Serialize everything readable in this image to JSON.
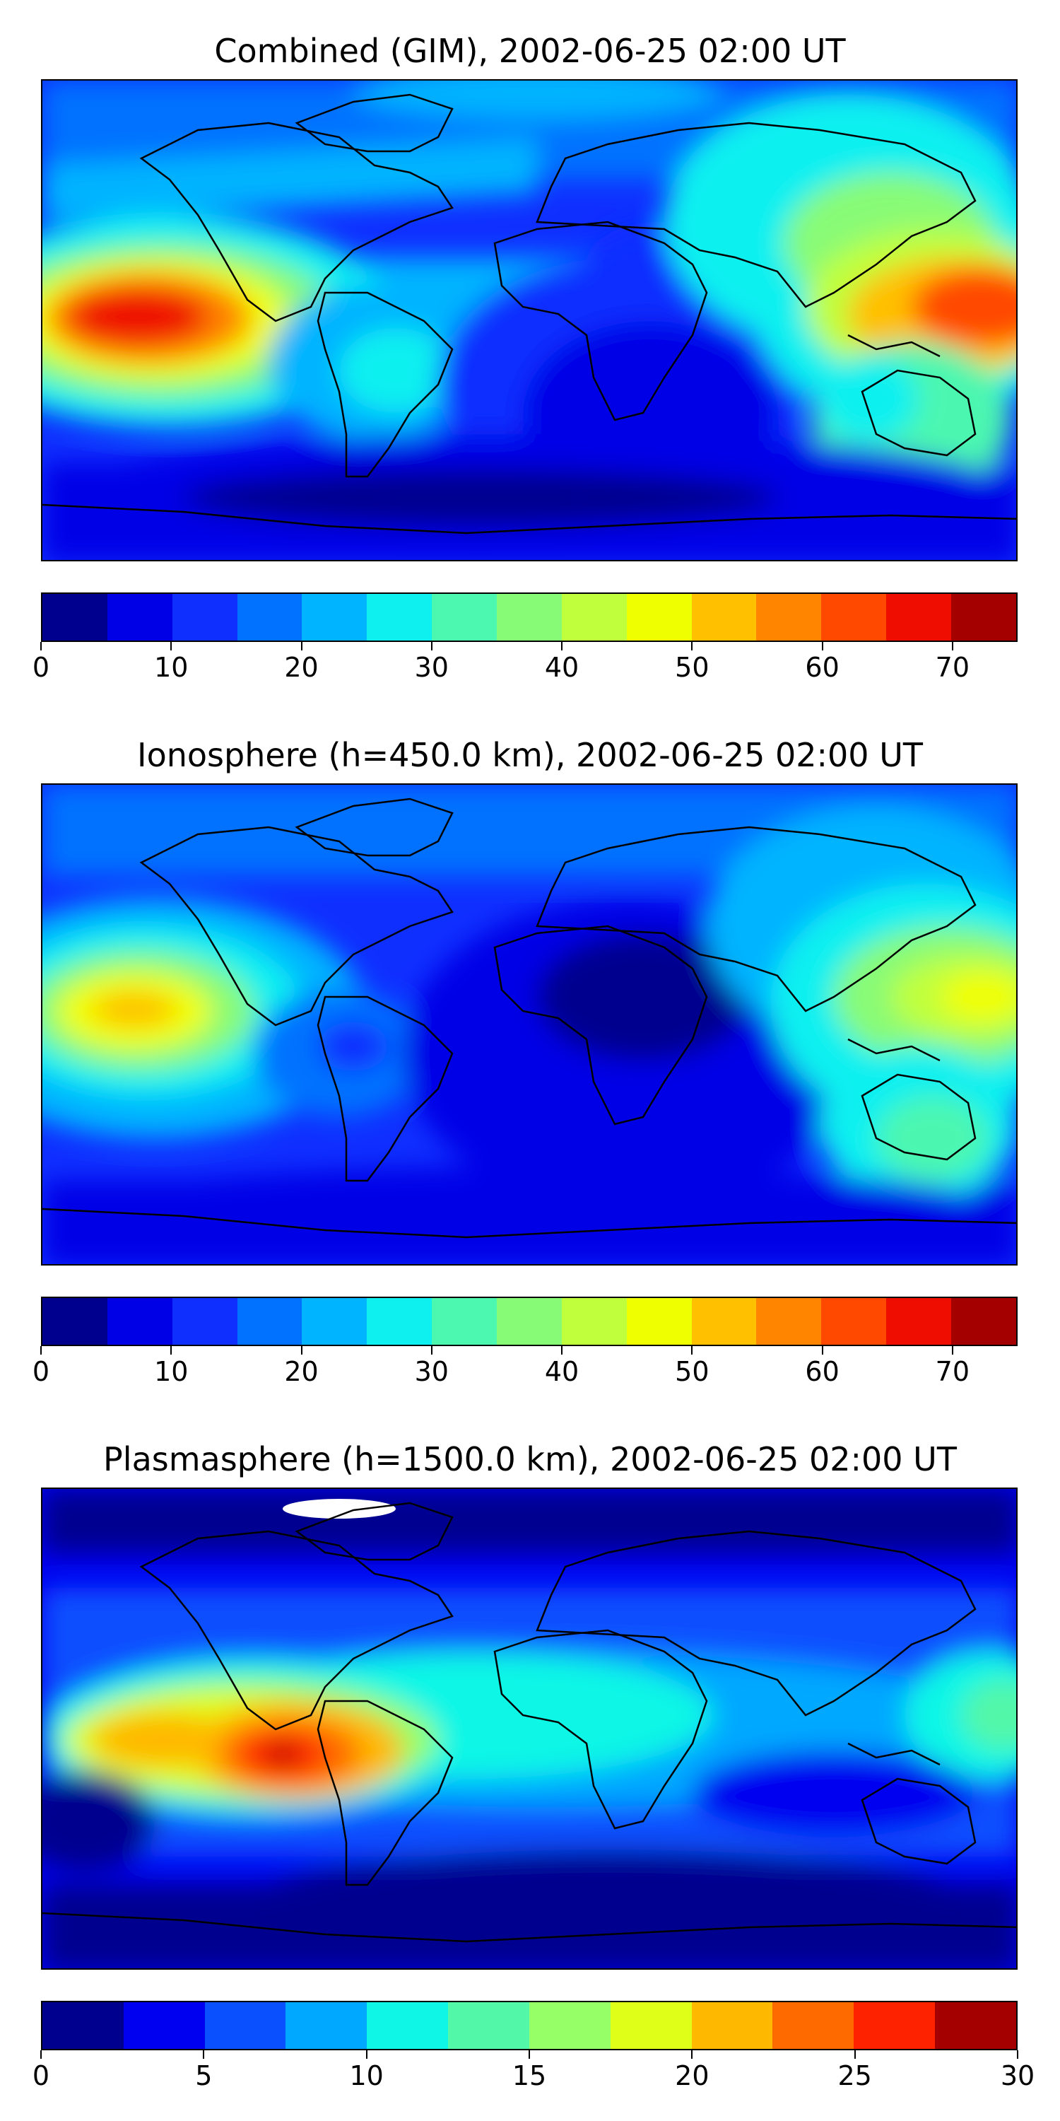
{
  "panels": [
    {
      "title": "Combined (GIM), 2002-06-25 02:00 UT",
      "vmin": 0,
      "vmax": 75,
      "levels": [
        0,
        5,
        10,
        15,
        20,
        25,
        30,
        35,
        40,
        45,
        50,
        55,
        60,
        65,
        70,
        75
      ],
      "ticks": [
        "0",
        "10",
        "20",
        "30",
        "40",
        "50",
        "60",
        "70"
      ],
      "colors": [
        "#00008f",
        "#0000e6",
        "#0f2fff",
        "#0072ff",
        "#00b4ff",
        "#0ef0f0",
        "#4cf7b0",
        "#88fb76",
        "#c0ff3c",
        "#f0ff00",
        "#ffc000",
        "#ff8400",
        "#ff4800",
        "#ef0c00",
        "#a50000"
      ]
    },
    {
      "title": "Ionosphere  (h=450.0 km), 2002-06-25 02:00 UT",
      "vmin": 0,
      "vmax": 75,
      "levels": [
        0,
        5,
        10,
        15,
        20,
        25,
        30,
        35,
        40,
        45,
        50,
        55,
        60,
        65,
        70,
        75
      ],
      "ticks": [
        "0",
        "10",
        "20",
        "30",
        "40",
        "50",
        "60",
        "70"
      ],
      "colors": [
        "#00008f",
        "#0000e6",
        "#0f2fff",
        "#0072ff",
        "#00b4ff",
        "#0ef0f0",
        "#4cf7b0",
        "#88fb76",
        "#c0ff3c",
        "#f0ff00",
        "#ffc000",
        "#ff8400",
        "#ff4800",
        "#ef0c00",
        "#a50000"
      ]
    },
    {
      "title": "Plasmasphere (h=1500.0 km), 2002-06-25 02:00 UT",
      "vmin": 0,
      "vmax": 30,
      "levels": [
        0,
        2.5,
        5,
        7.5,
        10,
        12.5,
        15,
        17.5,
        20,
        22.5,
        25,
        27.5,
        30
      ],
      "ticks": [
        "0",
        "5",
        "10",
        "15",
        "20",
        "25",
        "30"
      ],
      "colors": [
        "#00008f",
        "#0000f0",
        "#0a50ff",
        "#00a8ff",
        "#10f6e6",
        "#52f7a8",
        "#96ff68",
        "#e0ff18",
        "#ffb800",
        "#ff6a00",
        "#ff2200",
        "#a50000"
      ]
    }
  ]
}
